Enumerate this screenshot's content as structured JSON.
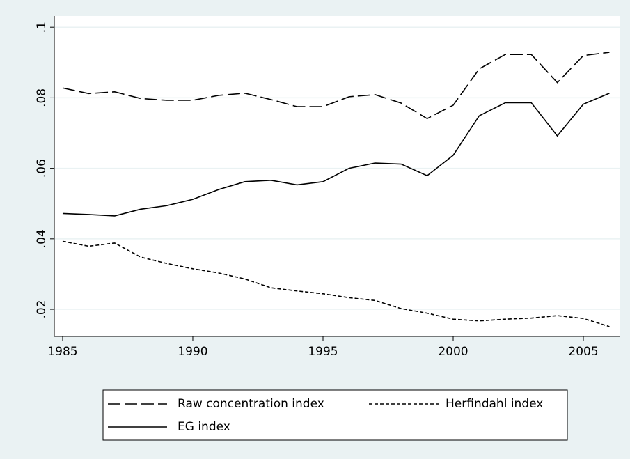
{
  "chart_data": {
    "type": "line",
    "x": [
      1985,
      1986,
      1987,
      1988,
      1989,
      1990,
      1991,
      1992,
      1993,
      1994,
      1995,
      1996,
      1997,
      1998,
      1999,
      2000,
      2001,
      2002,
      2003,
      2004,
      2005,
      2006
    ],
    "series": [
      {
        "name": "Raw concentration index",
        "color": "#000000",
        "dash": "18 6",
        "values": [
          0.0828,
          0.0812,
          0.0817,
          0.0798,
          0.0793,
          0.0793,
          0.0807,
          0.0813,
          0.0795,
          0.0775,
          0.0775,
          0.0803,
          0.0809,
          0.0785,
          0.0741,
          0.0779,
          0.0882,
          0.0923,
          0.0923,
          0.0843,
          0.092,
          0.0929
        ]
      },
      {
        "name": "Herfindahl index",
        "color": "#000000",
        "dash": "5 3",
        "values": [
          0.0393,
          0.0379,
          0.0388,
          0.0348,
          0.033,
          0.0315,
          0.0303,
          0.0286,
          0.0261,
          0.0252,
          0.0244,
          0.0233,
          0.0225,
          0.0202,
          0.0189,
          0.0172,
          0.0167,
          0.0172,
          0.0175,
          0.0182,
          0.0174,
          0.0151
        ]
      },
      {
        "name": "EG index",
        "color": "#000000",
        "dash": "none",
        "values": [
          0.0472,
          0.0469,
          0.0465,
          0.0484,
          0.0494,
          0.0512,
          0.054,
          0.0562,
          0.0566,
          0.0553,
          0.0562,
          0.06,
          0.0615,
          0.0612,
          0.0579,
          0.0637,
          0.0749,
          0.0786,
          0.0786,
          0.0692,
          0.0782,
          0.0813
        ]
      }
    ],
    "xlim": [
      1984.68,
      2006.39
    ],
    "xticks": [
      1985,
      1990,
      1995,
      2000,
      2005
    ],
    "ylim": [
      0.0123,
      0.1032
    ],
    "yticks": [
      {
        "value": 0.02,
        "label": ".02"
      },
      {
        "value": 0.04,
        "label": ".04"
      },
      {
        "value": 0.06,
        "label": ".06"
      },
      {
        "value": 0.08,
        "label": ".08"
      },
      {
        "value": 0.1,
        "label": ".1"
      }
    ],
    "grid": true
  }
}
